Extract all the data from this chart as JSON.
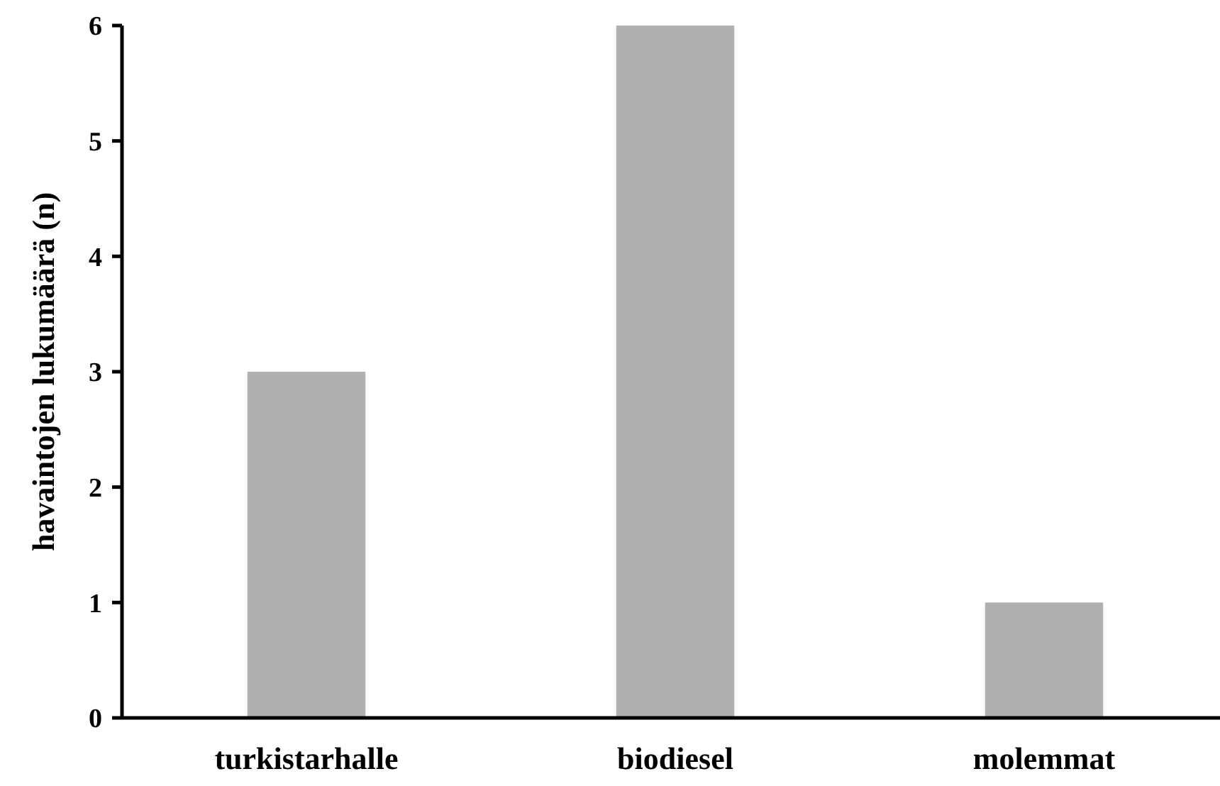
{
  "chart_data": {
    "type": "bar",
    "ylabel": "havaintojen lukumäärä (n)",
    "categories": [
      "turkistarhalle",
      "biodiesel",
      "molemmat"
    ],
    "values": [
      3,
      6,
      1
    ],
    "color": "#b0b0b0",
    "ylim": [
      0,
      6
    ],
    "yticks": [
      0,
      1,
      2,
      3,
      4,
      5,
      6
    ],
    "grid": false
  }
}
